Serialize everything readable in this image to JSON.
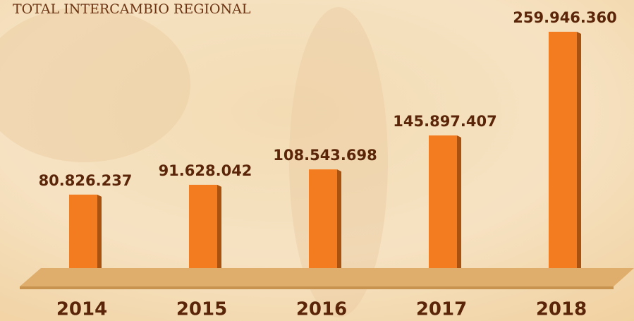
{
  "chart_data": {
    "type": "bar",
    "title": "TOTAL INTERCAMBIO REGIONAL",
    "categories": [
      "2014",
      "2015",
      "2016",
      "2017",
      "2018"
    ],
    "values": [
      80826237,
      91628042,
      108543698,
      145897407,
      259946360
    ],
    "value_labels": [
      "80.826.237",
      "91.628.042",
      "108.543.698",
      "145.897.407",
      "259.946.360"
    ],
    "color": "#f47c20"
  }
}
